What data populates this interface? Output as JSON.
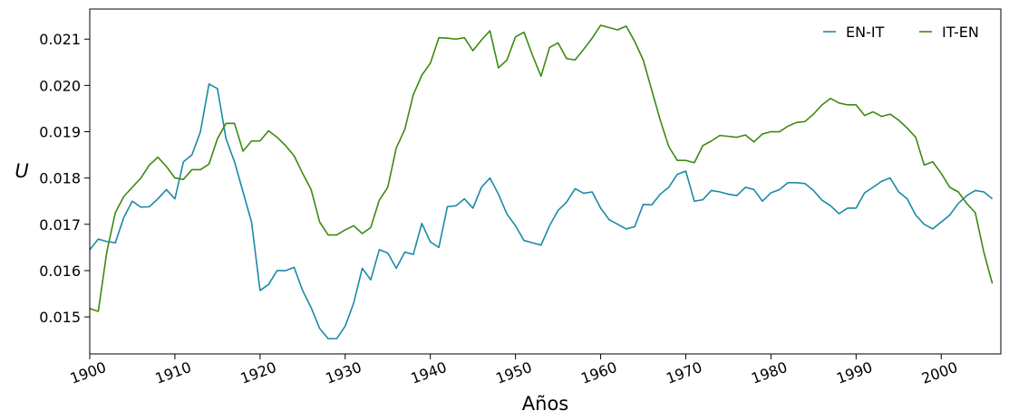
{
  "chart_data": {
    "type": "line",
    "xlabel": "Años",
    "ylabel": "U",
    "xlim": [
      1900,
      2007
    ],
    "ylim": [
      0.0142,
      0.02165
    ],
    "x_ticks": [
      1900,
      1910,
      1920,
      1930,
      1940,
      1950,
      1960,
      1970,
      1980,
      1990,
      2000
    ],
    "x_tick_labels": [
      "1900",
      "1910",
      "1920",
      "1930",
      "1940",
      "1950",
      "1960",
      "1970",
      "1980",
      "1990",
      "2000"
    ],
    "y_ticks": [
      0.015,
      0.016,
      0.017,
      0.018,
      0.019,
      0.02,
      0.021
    ],
    "y_tick_labels": [
      "0.015",
      "0.016",
      "0.017",
      "0.018",
      "0.019",
      "0.020",
      "0.021"
    ],
    "grid": false,
    "legend_position": "top-right",
    "x_start": 1900,
    "x_step": 1,
    "series": [
      {
        "name": "EN-IT",
        "color": "#1a8aa6",
        "values": [
          0.01645,
          0.01668,
          0.01663,
          0.0166,
          0.01715,
          0.0175,
          0.01737,
          0.01738,
          0.01755,
          0.01775,
          0.01755,
          0.01835,
          0.0185,
          0.019,
          0.02003,
          0.01993,
          0.01885,
          0.01835,
          0.0177,
          0.01705,
          0.01557,
          0.0157,
          0.016,
          0.016,
          0.01607,
          0.01557,
          0.0152,
          0.01475,
          0.01453,
          0.01453,
          0.0148,
          0.0153,
          0.01605,
          0.0158,
          0.01645,
          0.01638,
          0.01605,
          0.0164,
          0.01635,
          0.01702,
          0.01662,
          0.0165,
          0.01738,
          0.0174,
          0.01755,
          0.01735,
          0.0178,
          0.018,
          0.01765,
          0.01722,
          0.01697,
          0.01665,
          0.0166,
          0.01655,
          0.01697,
          0.0173,
          0.01748,
          0.01777,
          0.01767,
          0.0177,
          0.01735,
          0.0171,
          0.017,
          0.0169,
          0.01695,
          0.01743,
          0.01742,
          0.01765,
          0.0178,
          0.01808,
          0.01815,
          0.0175,
          0.01753,
          0.01773,
          0.0177,
          0.01765,
          0.01762,
          0.0178,
          0.01775,
          0.0175,
          0.01768,
          0.01775,
          0.0179,
          0.0179,
          0.01788,
          0.01773,
          0.01752,
          0.0174,
          0.01723,
          0.01735,
          0.01735,
          0.01768,
          0.0178,
          0.01793,
          0.018,
          0.0177,
          0.01755,
          0.0172,
          0.017,
          0.0169,
          0.01705,
          0.0172,
          0.01745,
          0.01762,
          0.01773,
          0.0177,
          0.01755
        ]
      },
      {
        "name": "IT-EN",
        "color": "#3d8a10",
        "values": [
          0.01518,
          0.01512,
          0.0164,
          0.01725,
          0.0176,
          0.0178,
          0.018,
          0.01828,
          0.01845,
          0.01825,
          0.018,
          0.01797,
          0.01818,
          0.01818,
          0.0183,
          0.01885,
          0.01918,
          0.01918,
          0.01858,
          0.0188,
          0.0188,
          0.01902,
          0.01888,
          0.0187,
          0.01848,
          0.0181,
          0.01775,
          0.01705,
          0.01677,
          0.01677,
          0.01688,
          0.01697,
          0.0168,
          0.01693,
          0.01752,
          0.0178,
          0.01865,
          0.01905,
          0.0198,
          0.02022,
          0.02048,
          0.02103,
          0.02102,
          0.021,
          0.02103,
          0.02075,
          0.02098,
          0.02118,
          0.02038,
          0.02055,
          0.02105,
          0.02115,
          0.02065,
          0.0202,
          0.02082,
          0.02092,
          0.02058,
          0.02055,
          0.02078,
          0.02102,
          0.0213,
          0.02125,
          0.0212,
          0.02128,
          0.02095,
          0.02055,
          0.0199,
          0.01925,
          0.01868,
          0.01838,
          0.01838,
          0.01833,
          0.0187,
          0.0188,
          0.01892,
          0.0189,
          0.01888,
          0.01893,
          0.01878,
          0.01895,
          0.019,
          0.019,
          0.01912,
          0.0192,
          0.01922,
          0.01938,
          0.01958,
          0.01972,
          0.01962,
          0.01958,
          0.01958,
          0.01935,
          0.01943,
          0.01933,
          0.01938,
          0.01925,
          0.01908,
          0.01888,
          0.01828,
          0.01835,
          0.0181,
          0.0178,
          0.0177,
          0.01745,
          0.01725,
          0.0164,
          0.01572
        ]
      }
    ]
  }
}
